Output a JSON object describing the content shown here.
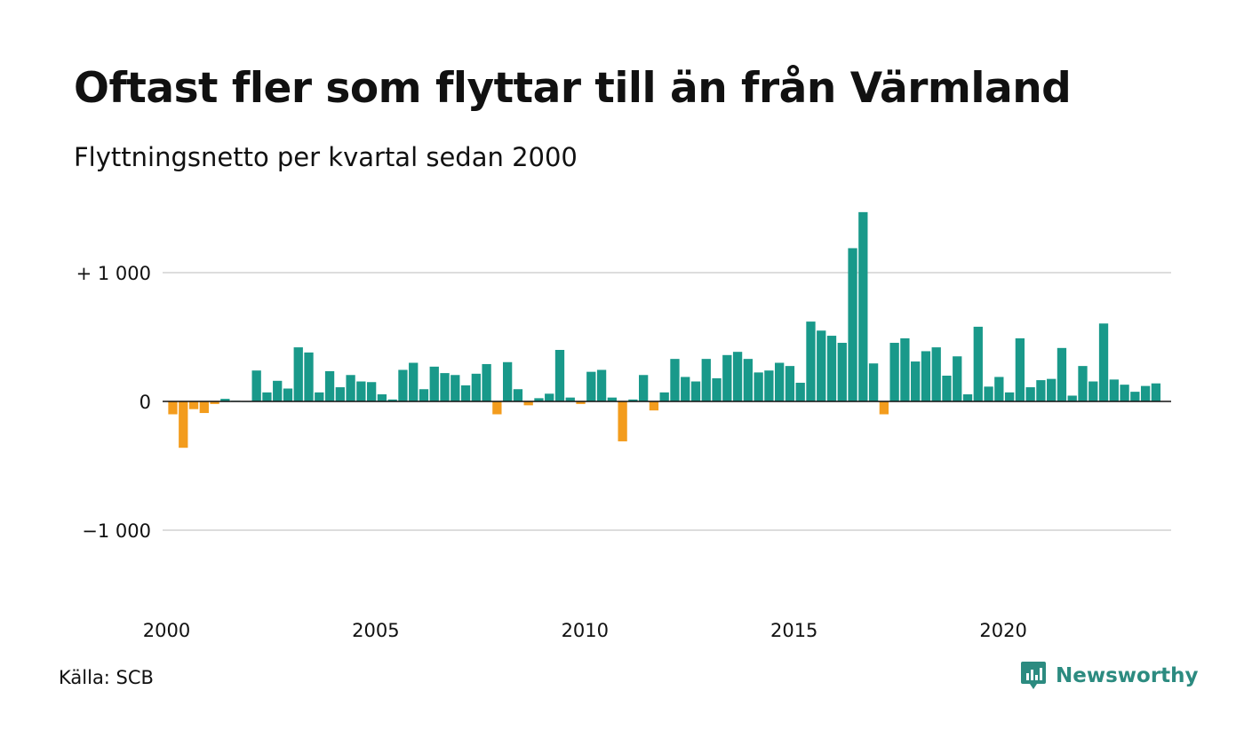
{
  "header": {
    "title": "Oftast fler som flyttar till än från Värmland",
    "subtitle": "Flyttningsnetto per kvartal sedan 2000"
  },
  "footer": {
    "source": "Källa: SCB",
    "brand": "Newsworthy"
  },
  "colors": {
    "positive": "#19998a",
    "negative": "#f39c1d",
    "grid": "#dddddd",
    "baseline": "#111111",
    "brand": "#2c8b80"
  },
  "icons": {
    "brand_logo": "newsworthy-chart-bubble-icon"
  },
  "chart_data": {
    "type": "bar",
    "title": "Oftast fler som flyttar till än från Värmland",
    "subtitle": "Flyttningsnetto per kvartal sedan 2000",
    "xlabel": "",
    "ylabel": "",
    "ylim": [
      -1600,
      1500
    ],
    "grid": true,
    "y_ticks": [
      {
        "value": 1000,
        "label": "+ 1 000"
      },
      {
        "value": 0,
        "label": "0"
      },
      {
        "value": -1000,
        "label": "−1 000"
      }
    ],
    "x_ticks": [
      {
        "year": 2000,
        "label": "2000"
      },
      {
        "year": 2005,
        "label": "2005"
      },
      {
        "year": 2010,
        "label": "2010"
      },
      {
        "year": 2015,
        "label": "2015"
      },
      {
        "year": 2020,
        "label": "2020"
      }
    ],
    "series": [
      {
        "values": [
          -100,
          -360,
          -60,
          -90,
          -20,
          20,
          5,
          0,
          240,
          70,
          160,
          100,
          420,
          380,
          70,
          235,
          110,
          205,
          155,
          150,
          55,
          15,
          245,
          300,
          95,
          270,
          220,
          205,
          125,
          215,
          290,
          -100,
          305,
          95,
          -30,
          25,
          60,
          400,
          30,
          -20,
          230,
          245,
          30,
          -310,
          15,
          205,
          -70,
          70,
          330,
          190,
          155,
          330,
          180,
          360,
          385,
          330,
          225,
          240,
          300,
          275,
          145,
          620,
          550,
          510,
          455,
          1190,
          1470,
          295,
          -100,
          455,
          490,
          310,
          390,
          420,
          200,
          350,
          55,
          580,
          115,
          190,
          70,
          490,
          110,
          165,
          175,
          415,
          45,
          275,
          155,
          605,
          170,
          130,
          75,
          120,
          140
        ]
      }
    ]
  }
}
